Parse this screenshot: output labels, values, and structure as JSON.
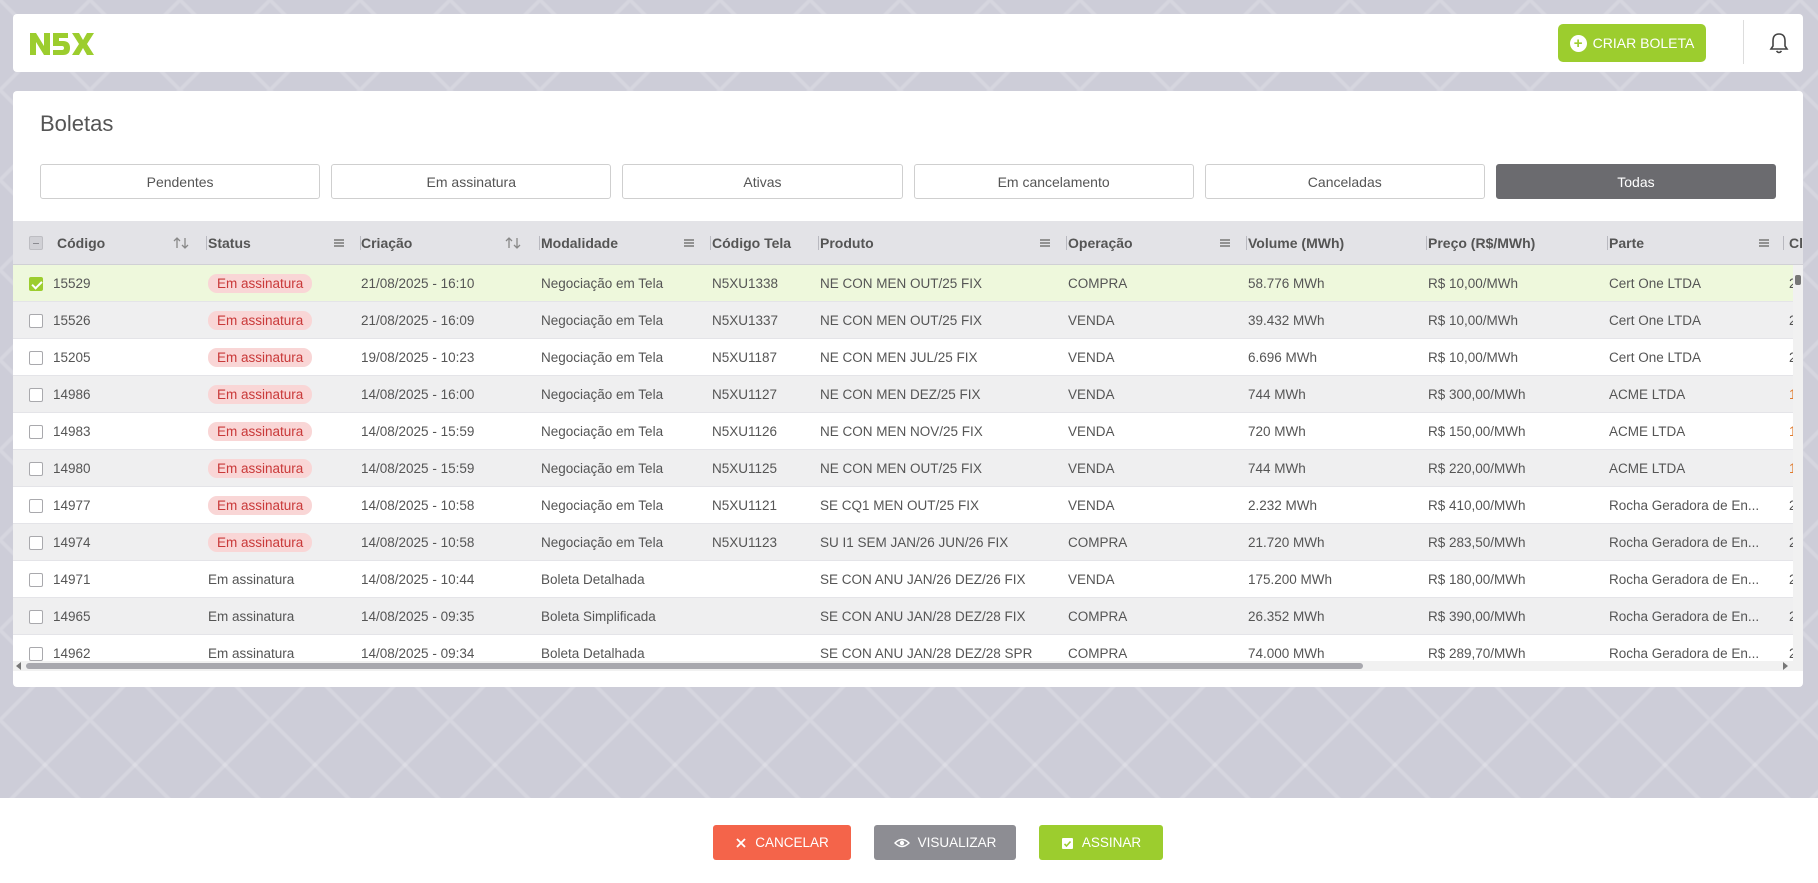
{
  "app": {
    "logo_text": "N5X"
  },
  "header": {
    "create_button": "CRIAR BOLETA"
  },
  "page": {
    "title": "Boletas"
  },
  "tabs": [
    {
      "label": "Pendentes",
      "active": false
    },
    {
      "label": "Em assinatura",
      "active": false
    },
    {
      "label": "Ativas",
      "active": false
    },
    {
      "label": "Em cancelamento",
      "active": false
    },
    {
      "label": "Canceladas",
      "active": false
    },
    {
      "label": "Todas",
      "active": true
    }
  ],
  "table": {
    "columns": [
      {
        "label": "Código",
        "control": "sort"
      },
      {
        "label": "Status",
        "control": "menu"
      },
      {
        "label": "Criação",
        "control": "sort"
      },
      {
        "label": "Modalidade",
        "control": "menu"
      },
      {
        "label": "Código Tela",
        "control": "none"
      },
      {
        "label": "Produto",
        "control": "menu"
      },
      {
        "label": "Operação",
        "control": "menu"
      },
      {
        "label": "Volume (MWh)",
        "control": "none"
      },
      {
        "label": "Preço (R$/MWh)",
        "control": "none"
      },
      {
        "label": "Parte",
        "control": "menu"
      },
      {
        "label": "Cl",
        "control": "none"
      }
    ],
    "rows": [
      {
        "checked": true,
        "codigo": "15529",
        "status": "Em assinatura",
        "status_badge": true,
        "criacao": "21/08/2025 - 16:10",
        "modalidade": "Negociação em Tela",
        "codigo_tela": "N5XU1338",
        "produto": "NE CON MEN OUT/25 FIX",
        "operacao": "COMPRA",
        "volume": "58.776 MWh",
        "preco": "R$ 10,00/MWh",
        "parte": "Cert One LTDA",
        "extra": "2",
        "extra_orange": false
      },
      {
        "checked": false,
        "codigo": "15526",
        "status": "Em assinatura",
        "status_badge": true,
        "criacao": "21/08/2025 - 16:09",
        "modalidade": "Negociação em Tela",
        "codigo_tela": "N5XU1337",
        "produto": "NE CON MEN OUT/25 FIX",
        "operacao": "VENDA",
        "volume": "39.432 MWh",
        "preco": "R$ 10,00/MWh",
        "parte": "Cert One LTDA",
        "extra": "2",
        "extra_orange": false
      },
      {
        "checked": false,
        "codigo": "15205",
        "status": "Em assinatura",
        "status_badge": true,
        "criacao": "19/08/2025 - 10:23",
        "modalidade": "Negociação em Tela",
        "codigo_tela": "N5XU1187",
        "produto": "NE CON MEN JUL/25 FIX",
        "operacao": "VENDA",
        "volume": "6.696 MWh",
        "preco": "R$ 10,00/MWh",
        "parte": "Cert One LTDA",
        "extra": "2",
        "extra_orange": false
      },
      {
        "checked": false,
        "codigo": "14986",
        "status": "Em assinatura",
        "status_badge": true,
        "criacao": "14/08/2025 - 16:00",
        "modalidade": "Negociação em Tela",
        "codigo_tela": "N5XU1127",
        "produto": "NE CON MEN DEZ/25 FIX",
        "operacao": "VENDA",
        "volume": "744 MWh",
        "preco": "R$ 300,00/MWh",
        "parte": "ACME LTDA",
        "extra": "1",
        "extra_orange": true
      },
      {
        "checked": false,
        "codigo": "14983",
        "status": "Em assinatura",
        "status_badge": true,
        "criacao": "14/08/2025 - 15:59",
        "modalidade": "Negociação em Tela",
        "codigo_tela": "N5XU1126",
        "produto": "NE CON MEN NOV/25 FIX",
        "operacao": "VENDA",
        "volume": "720 MWh",
        "preco": "R$ 150,00/MWh",
        "parte": "ACME LTDA",
        "extra": "1",
        "extra_orange": true
      },
      {
        "checked": false,
        "codigo": "14980",
        "status": "Em assinatura",
        "status_badge": true,
        "criacao": "14/08/2025 - 15:59",
        "modalidade": "Negociação em Tela",
        "codigo_tela": "N5XU1125",
        "produto": "NE CON MEN OUT/25 FIX",
        "operacao": "VENDA",
        "volume": "744 MWh",
        "preco": "R$ 220,00/MWh",
        "parte": "ACME LTDA",
        "extra": "1",
        "extra_orange": true
      },
      {
        "checked": false,
        "codigo": "14977",
        "status": "Em assinatura",
        "status_badge": true,
        "criacao": "14/08/2025 - 10:58",
        "modalidade": "Negociação em Tela",
        "codigo_tela": "N5XU1121",
        "produto": "SE CQ1 MEN OUT/25 FIX",
        "operacao": "VENDA",
        "volume": "2.232 MWh",
        "preco": "R$ 410,00/MWh",
        "parte": "Rocha Geradora de En...",
        "extra": "2",
        "extra_orange": false
      },
      {
        "checked": false,
        "codigo": "14974",
        "status": "Em assinatura",
        "status_badge": true,
        "criacao": "14/08/2025 - 10:58",
        "modalidade": "Negociação em Tela",
        "codigo_tela": "N5XU1123",
        "produto": "SU I1 SEM JAN/26 JUN/26 FIX",
        "operacao": "COMPRA",
        "volume": "21.720 MWh",
        "preco": "R$ 283,50/MWh",
        "parte": "Rocha Geradora de En...",
        "extra": "2",
        "extra_orange": false
      },
      {
        "checked": false,
        "codigo": "14971",
        "status": "Em assinatura",
        "status_badge": false,
        "criacao": "14/08/2025 - 10:44",
        "modalidade": "Boleta Detalhada",
        "codigo_tela": "",
        "produto": "SE CON ANU JAN/26 DEZ/26 FIX",
        "operacao": "VENDA",
        "volume": "175.200 MWh",
        "preco": "R$ 180,00/MWh",
        "parte": "Rocha Geradora de En...",
        "extra": "2",
        "extra_orange": false
      },
      {
        "checked": false,
        "codigo": "14965",
        "status": "Em assinatura",
        "status_badge": false,
        "criacao": "14/08/2025 - 09:35",
        "modalidade": "Boleta Simplificada",
        "codigo_tela": "",
        "produto": "SE CON ANU JAN/28 DEZ/28 FIX",
        "operacao": "COMPRA",
        "volume": "26.352 MWh",
        "preco": "R$ 390,00/MWh",
        "parte": "Rocha Geradora de En...",
        "extra": "2",
        "extra_orange": false
      },
      {
        "checked": false,
        "codigo": "14962",
        "status": "Em assinatura",
        "status_badge": false,
        "criacao": "14/08/2025 - 09:34",
        "modalidade": "Boleta Detalhada",
        "codigo_tela": "",
        "produto": "SE CON ANU JAN/28 DEZ/28 SPR",
        "operacao": "COMPRA",
        "volume": "74.000 MWh",
        "preco": "R$ 289,70/MWh",
        "parte": "Rocha Geradora de En...",
        "extra": "2",
        "extra_orange": false
      }
    ]
  },
  "actions": {
    "cancel": "CANCELAR",
    "view": "VISUALIZAR",
    "sign": "ASSINAR"
  },
  "colors": {
    "brand_green": "#9ccd2e",
    "danger": "#f4644a",
    "neutral": "#8d8d93",
    "active_tab": "#6b6b6f"
  }
}
